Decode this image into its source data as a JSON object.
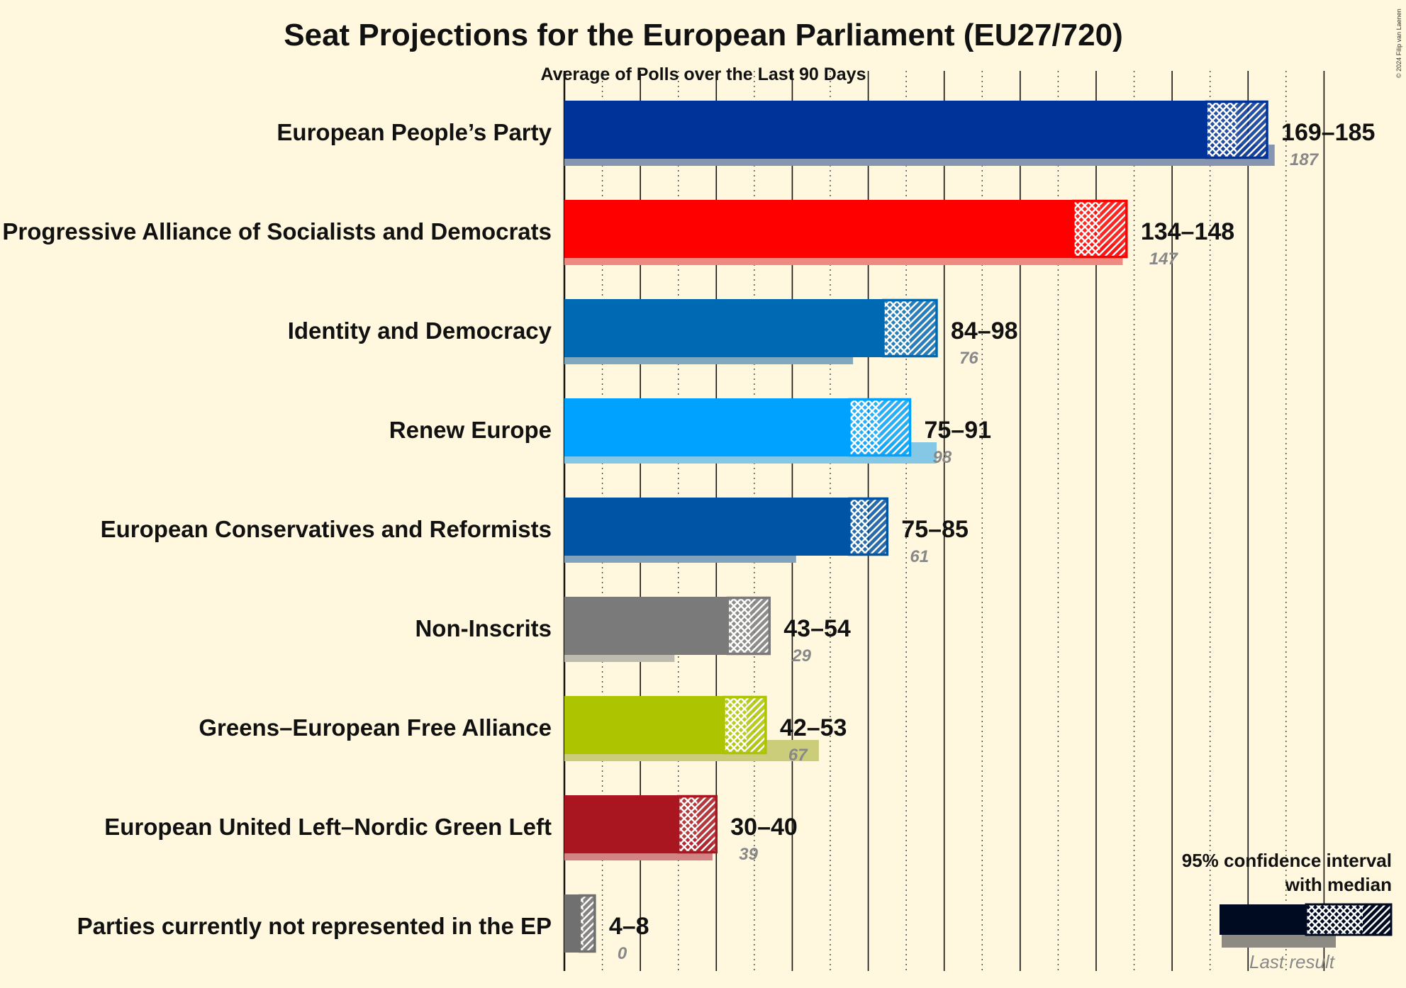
{
  "chart_data": {
    "type": "bar",
    "title": "Seat Projections for the European Parliament (EU27/720)",
    "subtitle": "Average of Polls over the Last 90 Days",
    "copyright": "© 2024 Filip van Laenen",
    "orientation": "horizontal",
    "series_fields": [
      "ci_low",
      "median",
      "ci_high",
      "last_result"
    ],
    "categories": [
      "European People’s Party",
      "Progressive Alliance of Socialists and Democrats",
      "Identity and Democracy",
      "Renew Europe",
      "European Conservatives and Reformists",
      "Non-Inscrits",
      "Greens–European Free Alliance",
      "European United Left–Nordic Green Left",
      "Parties currently not represented in the EP"
    ],
    "parties": [
      {
        "name": "European People’s Party",
        "range": "169–185",
        "ci_low": 169,
        "median": 177,
        "ci_high": 185,
        "last_result": 187,
        "last_label": "187",
        "color": "#003399",
        "last_color": "#8796b0"
      },
      {
        "name": "Progressive Alliance of Socialists and Democrats",
        "range": "134–148",
        "ci_low": 134,
        "median": 141,
        "ci_high": 148,
        "last_result": 147,
        "last_label": "147",
        "color": "#ff0000",
        "last_color": "#ee8a80"
      },
      {
        "name": "Identity and Democracy",
        "range": "84–98",
        "ci_low": 84,
        "median": 91,
        "ci_high": 98,
        "last_result": 76,
        "last_label": "76",
        "color": "#0069b4",
        "last_color": "#80a9bd"
      },
      {
        "name": "Renew Europe",
        "range": "75–91",
        "ci_low": 75,
        "median": 83,
        "ci_high": 91,
        "last_result": 98,
        "last_label": "98",
        "color": "#00a2ff",
        "last_color": "#85c8e6"
      },
      {
        "name": "European Conservatives and Reformists",
        "range": "75–85",
        "ci_low": 75,
        "median": 80,
        "ci_high": 85,
        "last_result": 61,
        "last_label": "61",
        "color": "#0054a5",
        "last_color": "#80a2bc"
      },
      {
        "name": "Non-Inscrits",
        "range": "43–54",
        "ci_low": 43,
        "median": 49,
        "ci_high": 54,
        "last_result": 29,
        "last_label": "29",
        "color": "#7a7a7a",
        "last_color": "#bdbab0"
      },
      {
        "name": "Greens–European Free Alliance",
        "range": "42–53",
        "ci_low": 42,
        "median": 48,
        "ci_high": 53,
        "last_result": 67,
        "last_label": "67",
        "color": "#adc400",
        "last_color": "#cccd7b"
      },
      {
        "name": "European United Left–Nordic Green Left",
        "range": "30–40",
        "ci_low": 30,
        "median": 35,
        "ci_high": 40,
        "last_result": 39,
        "last_label": "39",
        "color": "#aa1620",
        "last_color": "#d38384"
      },
      {
        "name": "Parties currently not represented in the EP",
        "range": "4–8",
        "ci_low": 4,
        "median": 5,
        "ci_high": 8,
        "last_result": 0,
        "last_label": "0",
        "color": "#707070",
        "last_color": "#b8b5ad"
      }
    ],
    "x_range": [
      0,
      200
    ],
    "x_gridlines": {
      "solid_every": 20,
      "dotted_every": 10
    },
    "xlabel": "",
    "ylabel": "",
    "legend": {
      "title_line1": "95% confidence interval",
      "title_line2": "with median",
      "last_result_label": "Last result",
      "position": "bottom-right"
    }
  }
}
